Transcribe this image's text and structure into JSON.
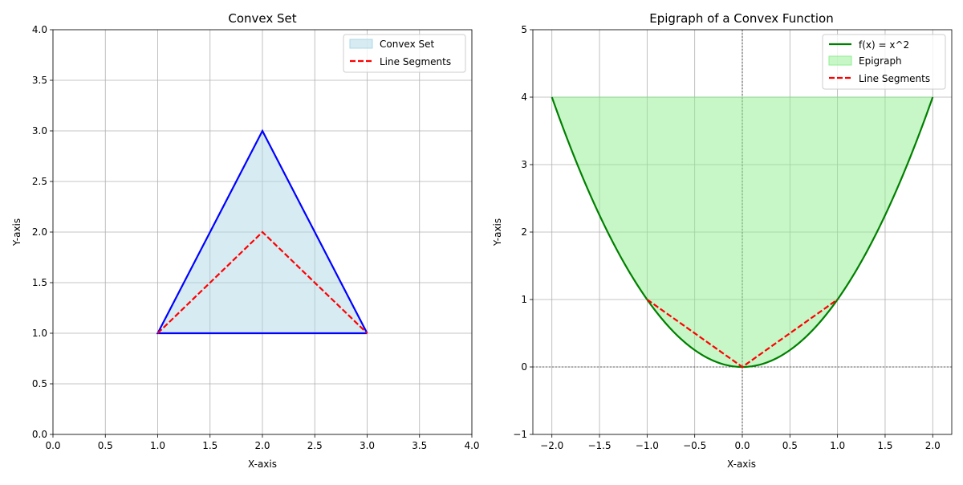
{
  "chart_data": [
    {
      "type": "area",
      "title": "Convex Set",
      "xlabel": "X-axis",
      "ylabel": "Y-axis",
      "xlim": [
        0,
        4
      ],
      "ylim": [
        0,
        4
      ],
      "xticks": [
        0,
        0.5,
        1,
        1.5,
        2,
        2.5,
        3,
        3.5,
        4
      ],
      "yticks": [
        0,
        0.5,
        1,
        1.5,
        2,
        2.5,
        3,
        3.5,
        4
      ],
      "xtick_labels": [
        "0.0",
        "0.5",
        "1.0",
        "1.5",
        "2.0",
        "2.5",
        "3.0",
        "3.5",
        "4.0"
      ],
      "ytick_labels": [
        "0.0",
        "0.5",
        "1.0",
        "1.5",
        "2.0",
        "2.5",
        "3.0",
        "3.5",
        "4.0"
      ],
      "grid": true,
      "legend_position": "top-right",
      "series": [
        {
          "name": "Convex Set",
          "kind": "fill",
          "color": "#add8e6",
          "points": [
            [
              1,
              1
            ],
            [
              2,
              3
            ],
            [
              3,
              1
            ]
          ]
        },
        {
          "name": "",
          "kind": "line",
          "color": "#0000ff",
          "points": [
            [
              3,
              1
            ],
            [
              1,
              1
            ],
            [
              2,
              3
            ],
            [
              3,
              1
            ]
          ],
          "note_edge_from_left": false
        },
        {
          "name": "Line Segments",
          "kind": "dashed",
          "color": "#ff0000",
          "points": [
            [
              1,
              1
            ],
            [
              2,
              2
            ],
            [
              3,
              1
            ]
          ]
        }
      ]
    },
    {
      "type": "area",
      "title": "Epigraph of a Convex Function",
      "xlabel": "X-axis",
      "ylabel": "Y-axis",
      "xlim": [
        -2.2,
        2.2
      ],
      "ylim": [
        -1,
        5
      ],
      "xticks": [
        -2,
        -1.5,
        -1,
        -0.5,
        0,
        0.5,
        1,
        1.5,
        2
      ],
      "yticks": [
        -1,
        0,
        1,
        2,
        3,
        4,
        5
      ],
      "xtick_labels": [
        "−2.0",
        "−1.5",
        "−1.0",
        "−0.5",
        "0.0",
        "0.5",
        "1.0",
        "1.5",
        "2.0"
      ],
      "ytick_labels": [
        "−1",
        "0",
        "1",
        "2",
        "3",
        "4",
        "5"
      ],
      "grid": true,
      "legend_position": "top-right",
      "function": "x^2",
      "domain": [
        -2,
        2
      ],
      "epigraph_top": 4,
      "series": [
        {
          "name": "f(x) = x^2",
          "kind": "curve",
          "color": "#008000"
        },
        {
          "name": "Epigraph",
          "kind": "fill",
          "color": "#90ee90"
        },
        {
          "name": "Line Segments",
          "kind": "dashed",
          "color": "#ff0000",
          "points": [
            [
              -1,
              1
            ],
            [
              0,
              0
            ],
            [
              1,
              1
            ]
          ]
        }
      ]
    }
  ]
}
